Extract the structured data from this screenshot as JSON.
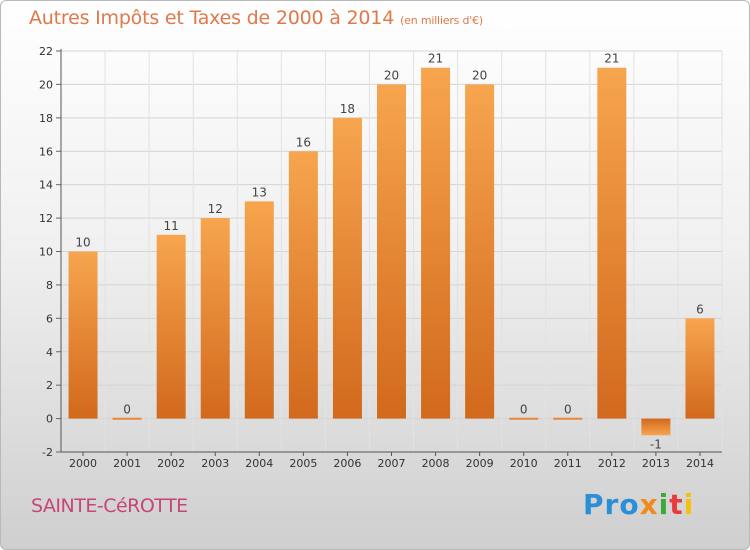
{
  "header": {
    "title": "Autres Impôts et Taxes de 2000 à 2014",
    "subtitle": "(en milliers d'€)"
  },
  "footer": {
    "commune": "SAINTE-CéROTTE",
    "logo": {
      "p1": "Pro",
      "p2": "x",
      "p3": "i",
      "p4": "t",
      "p5": "i"
    }
  },
  "colors": {
    "bar_light": "#f7a54e",
    "bar_dark": "#d2691c",
    "title": "#e0784a",
    "commune": "#c8457a",
    "grid": "#cccccc"
  },
  "chart_data": {
    "type": "bar",
    "title": "Autres Impôts et Taxes de 2000 à 2014",
    "subtitle": "(en milliers d'€)",
    "categories": [
      "2000",
      "2001",
      "2002",
      "2003",
      "2004",
      "2005",
      "2006",
      "2007",
      "2008",
      "2009",
      "2010",
      "2011",
      "2012",
      "2013",
      "2014"
    ],
    "values": [
      10,
      0,
      11,
      12,
      13,
      16,
      18,
      20,
      21,
      20,
      0,
      0,
      21,
      -1,
      6
    ],
    "ylim": [
      -2,
      22
    ],
    "yticks": [
      -2,
      0,
      2,
      4,
      6,
      8,
      10,
      12,
      14,
      16,
      18,
      20,
      22
    ],
    "grid": true,
    "xlabel": "",
    "ylabel": ""
  }
}
